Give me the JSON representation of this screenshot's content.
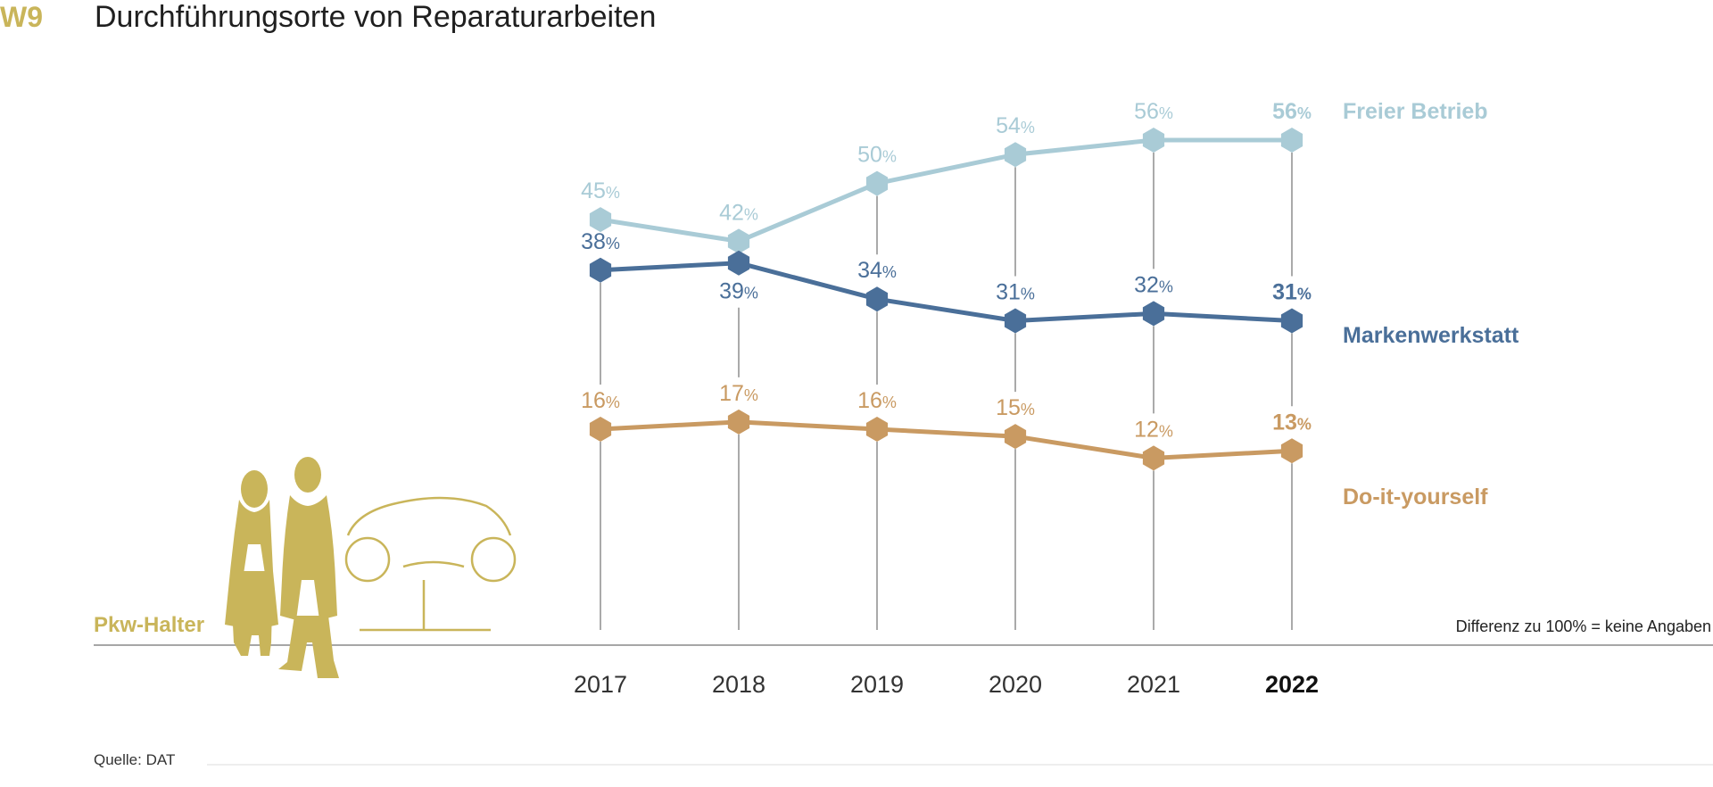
{
  "figure_label": "W9",
  "title": "Durchführungsorte von Reparaturarbeiten",
  "owner_label": "Pkw-Halter",
  "note": "Differenz zu 100% = keine Angaben",
  "source": "Quelle: DAT",
  "colors": {
    "accent": "#c9b55a",
    "freier_betrieb": "#a9cbd6",
    "markenwerkstatt": "#4a6f99",
    "diy": "#c99a62",
    "gridline": "#555555",
    "axis": "#888888"
  },
  "chart_data": {
    "type": "line",
    "title": "Durchführungsorte von Reparaturarbeiten",
    "x": [
      "2017",
      "2018",
      "2019",
      "2020",
      "2021",
      "2022"
    ],
    "highlight_x": "2022",
    "ylim": [
      0,
      60
    ],
    "grid": "vertical",
    "percent_sign": "%",
    "series": [
      {
        "name": "Freier Betrieb",
        "values": [
          45,
          42,
          50,
          54,
          56,
          56
        ]
      },
      {
        "name": "Markenwerkstatt",
        "values": [
          38,
          39,
          34,
          31,
          32,
          31
        ]
      },
      {
        "name": "Do-it-yourself",
        "values": [
          16,
          17,
          16,
          15,
          12,
          13
        ]
      }
    ]
  }
}
